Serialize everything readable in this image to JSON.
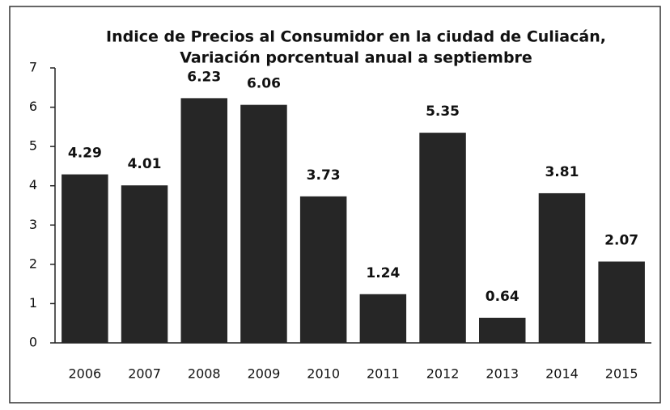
{
  "chart_data": {
    "type": "bar",
    "title": "Indice de Precios al Consumidor en la ciudad de Culiacán,",
    "subtitle": "Variación porcentual anual a septiembre",
    "categories": [
      "2006",
      "2007",
      "2008",
      "2009",
      "2010",
      "2011",
      "2012",
      "2013",
      "2014",
      "2015"
    ],
    "values": [
      4.29,
      4.01,
      6.23,
      6.06,
      3.73,
      1.24,
      5.35,
      0.64,
      3.81,
      2.07
    ],
    "color": "#262626",
    "ylim": [
      0,
      7
    ],
    "yticks": [
      0,
      1,
      2,
      3,
      4,
      5,
      6,
      7
    ],
    "grid": false
  }
}
